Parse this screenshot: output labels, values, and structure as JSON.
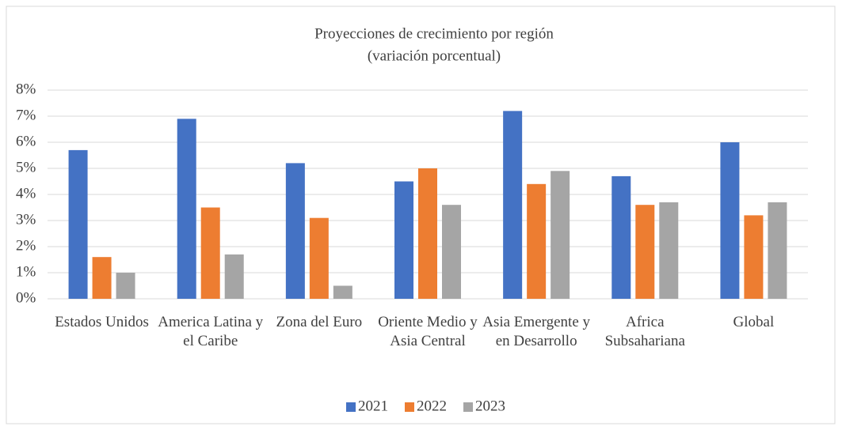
{
  "chart_data": {
    "type": "bar",
    "title": "Proyecciones de crecimiento por región",
    "subtitle": "(variación porcentual)",
    "categories": [
      "Estados Unidos",
      "America Latina y el Caribe",
      "Zona del Euro",
      "Oriente Medio y Asia Central",
      "Asia Emergente y en Desarrollo",
      "Africa Subsahariana",
      "Global"
    ],
    "series": [
      {
        "name": "2021",
        "color": "#4472c4",
        "values": [
          5.7,
          6.9,
          5.2,
          4.5,
          7.2,
          4.7,
          6.0
        ]
      },
      {
        "name": "2022",
        "color": "#ed7d31",
        "values": [
          1.6,
          3.5,
          3.1,
          5.0,
          4.4,
          3.6,
          3.2
        ]
      },
      {
        "name": "2023",
        "color": "#a5a5a5",
        "values": [
          1.0,
          1.7,
          0.5,
          3.6,
          4.9,
          3.7,
          3.7
        ]
      }
    ],
    "ylim": [
      0,
      8
    ],
    "yticks": [
      {
        "value": 0,
        "label": "0%"
      },
      {
        "value": 1,
        "label": "1%"
      },
      {
        "value": 2,
        "label": "2%"
      },
      {
        "value": 3,
        "label": "3%"
      },
      {
        "value": 4,
        "label": "4%"
      },
      {
        "value": 5,
        "label": "5%"
      },
      {
        "value": 6,
        "label": "6%"
      },
      {
        "value": 7,
        "label": "7%"
      },
      {
        "value": 8,
        "label": "8%"
      }
    ],
    "grid": true,
    "legend": "bottom"
  }
}
